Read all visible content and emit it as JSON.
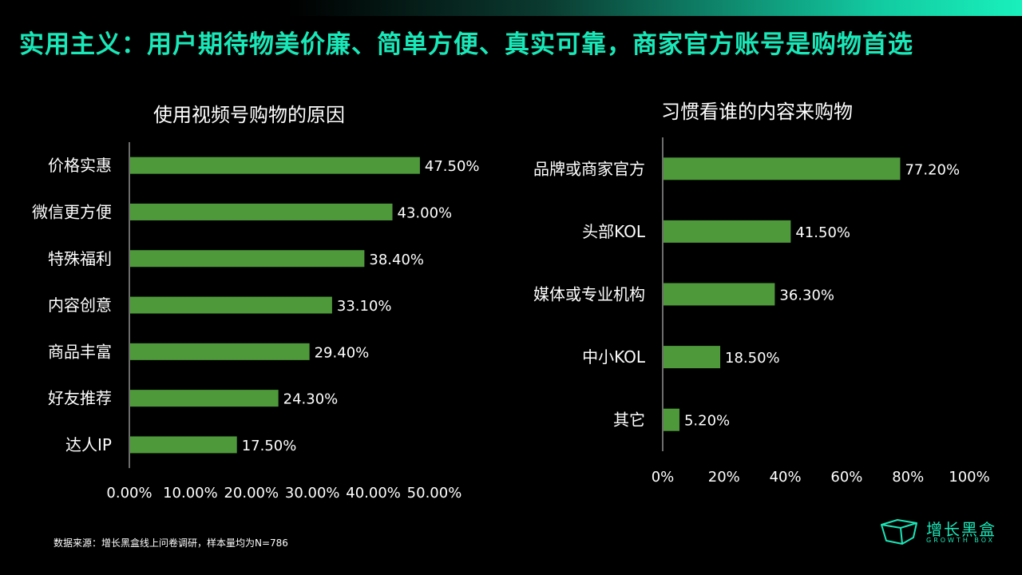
{
  "header": {
    "title": "实用主义：用户期待物美价廉、简单方便、真实可靠，商家官方账号是购物首选"
  },
  "chart_data": [
    {
      "type": "bar",
      "orientation": "horizontal",
      "title": "使用视频号购物的原因",
      "categories": [
        "价格实惠",
        "微信更方便",
        "特殊福利",
        "内容创意",
        "商品丰富",
        "好友推荐",
        "达人IP"
      ],
      "values": [
        47.5,
        43.0,
        38.4,
        33.1,
        29.4,
        24.3,
        17.5
      ],
      "value_labels": [
        "47.50%",
        "43.00%",
        "38.40%",
        "33.10%",
        "29.40%",
        "24.30%",
        "17.50%"
      ],
      "xlim": [
        0,
        50
      ],
      "x_ticks": [
        "0.00%",
        "10.00%",
        "20.00%",
        "30.00%",
        "40.00%",
        "50.00%"
      ],
      "grid": false,
      "bar_color": "#4e9a3a"
    },
    {
      "type": "bar",
      "orientation": "horizontal",
      "title": "习惯看谁的内容来购物",
      "categories": [
        "品牌或商家官方",
        "头部KOL",
        "媒体或专业机构",
        "中小KOL",
        "其它"
      ],
      "values": [
        77.2,
        41.5,
        36.3,
        18.5,
        5.2
      ],
      "value_labels": [
        "77.20%",
        "41.50%",
        "36.30%",
        "18.50%",
        "5.20%"
      ],
      "xlim": [
        0,
        100
      ],
      "x_ticks": [
        "0%",
        "20%",
        "40%",
        "60%",
        "80%",
        "100%"
      ],
      "grid": false,
      "bar_color": "#4e9a3a"
    }
  ],
  "footer": {
    "source": "数据来源：增长黑盒线上问卷调研，样本量均为N=786"
  },
  "logo": {
    "name": "增长黑盒",
    "sub": "GROWTH BOX",
    "icon": "cube-icon",
    "color": "#19e8b8"
  }
}
